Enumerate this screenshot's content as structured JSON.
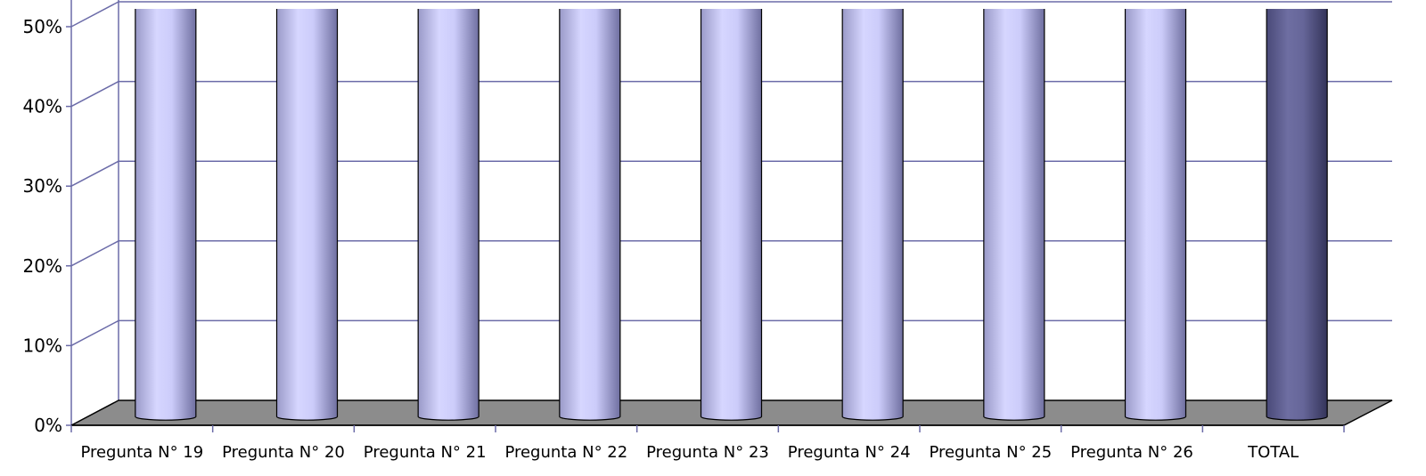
{
  "chart_data": {
    "type": "bar",
    "title": "",
    "xlabel": "",
    "ylabel": "",
    "categories": [
      "Pregunta N° 19",
      "Pregunta N° 20",
      "Pregunta N° 21",
      "Pregunta N° 22",
      "Pregunta N° 23",
      "Pregunta N° 24",
      "Pregunta N° 25",
      "Pregunta N° 26",
      "TOTAL"
    ],
    "values": [
      52,
      52,
      52,
      52,
      52,
      52,
      52,
      52,
      52
    ],
    "ylim": [
      0,
      50
    ],
    "yticks": [
      "0%",
      "10%",
      "20%",
      "30%",
      "40%",
      "50%"
    ],
    "grid": true,
    "legend": "none",
    "style": "3d-cylinder",
    "colors": {
      "bar": "#ccccff",
      "bar_dark": "#9999cc",
      "total_bar": "#666699",
      "total_bar_dark": "#3d3d66",
      "gridline": "#6b6ba8",
      "floor": "#8c8c8c"
    }
  }
}
